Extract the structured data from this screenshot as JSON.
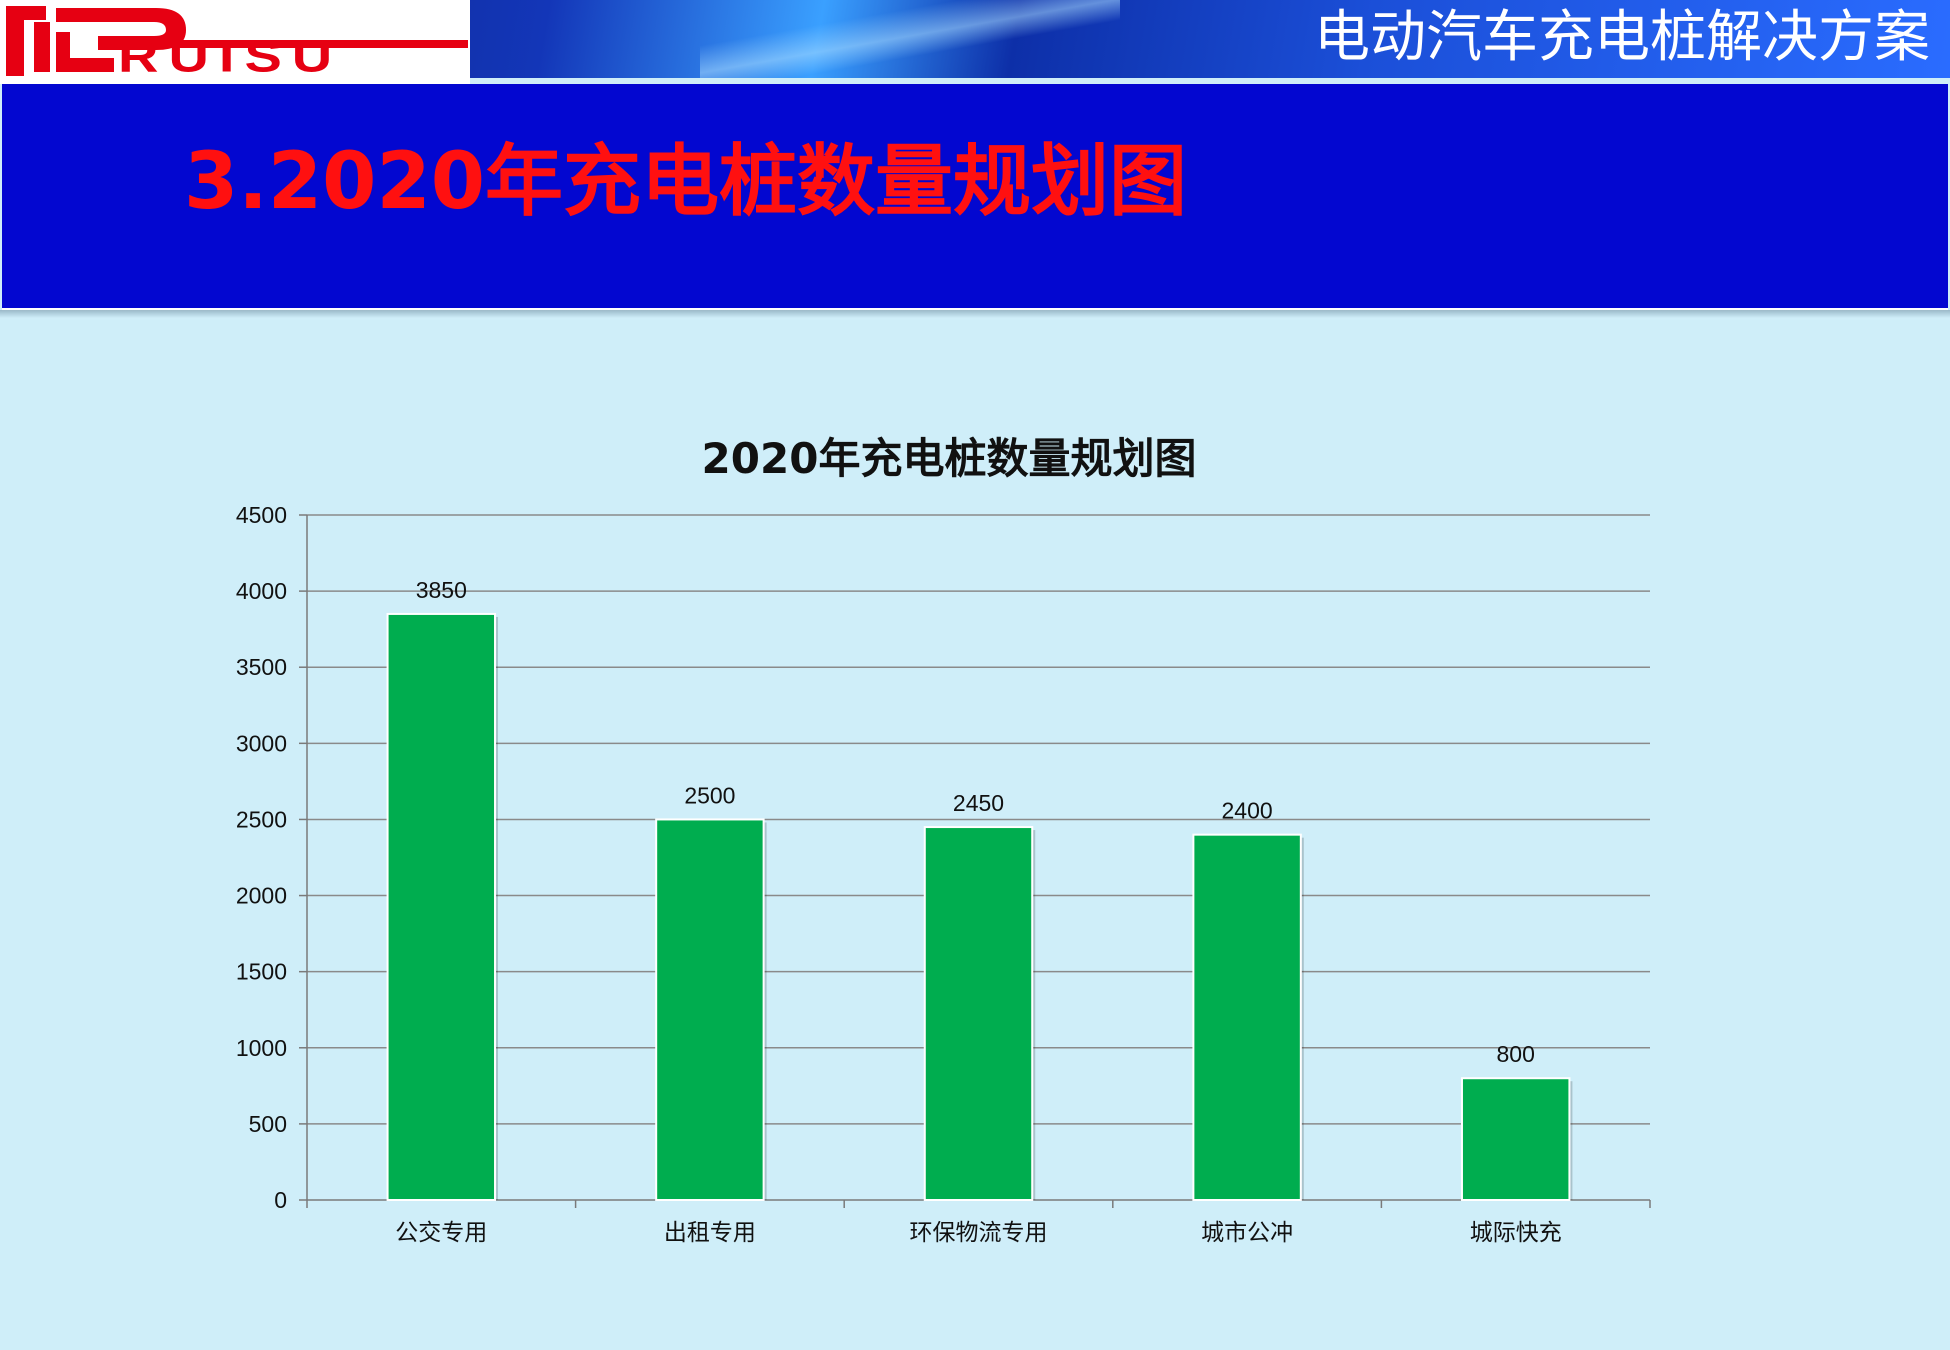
{
  "header": {
    "logo_text": "RUISU",
    "title": "电动汽车充电桩解决方案"
  },
  "slide": {
    "title": "3.2020年充电桩数量规划图"
  },
  "colors": {
    "banner": "#0307d0",
    "slide_title": "#ff1010",
    "bar": "#00ad4f",
    "background": "#cfeef9"
  },
  "chart_data": {
    "type": "bar",
    "title": "2020年充电桩数量规划图",
    "categories": [
      "公交专用",
      "出租专用",
      "环保物流专用",
      "城市公冲",
      "城际快充"
    ],
    "values": [
      3850,
      2500,
      2450,
      2400,
      800
    ],
    "data_labels": [
      "3850",
      "2500",
      "2450",
      "2400",
      "800"
    ],
    "y_ticks": [
      0,
      500,
      1000,
      1500,
      2000,
      2500,
      3000,
      3500,
      4000,
      4500
    ],
    "ylim": [
      0,
      4500
    ],
    "grid": true,
    "legend": "none"
  }
}
